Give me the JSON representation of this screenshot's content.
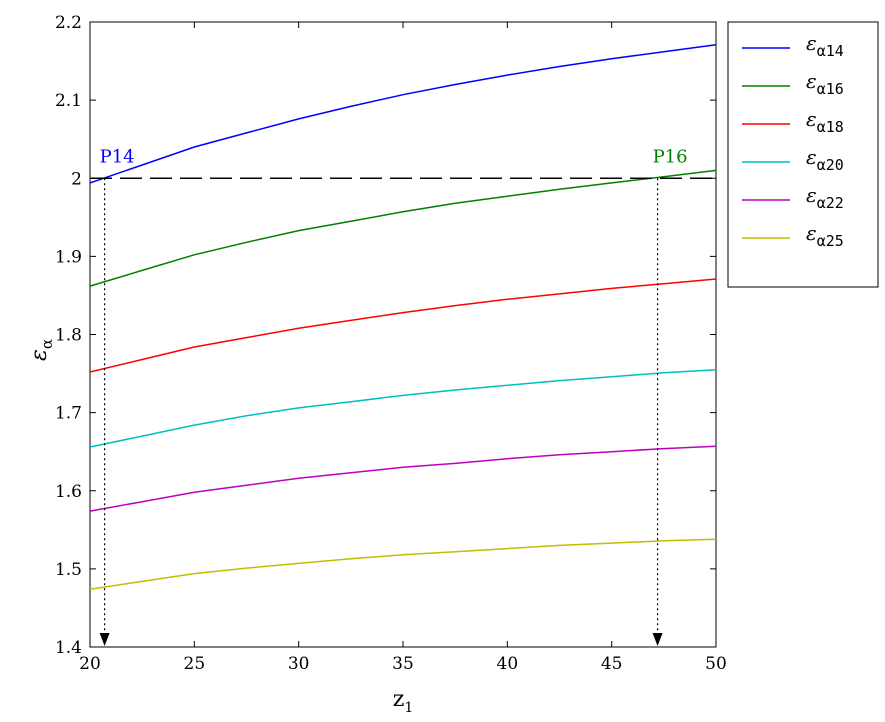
{
  "chart_data": {
    "type": "line",
    "xlabel": "z",
    "xlabel_sub": "1",
    "ylabel": "ε",
    "ylabel_sub": "α",
    "xlim": [
      20,
      50
    ],
    "ylim": [
      1.4,
      2.2
    ],
    "xticks": [
      20,
      25,
      30,
      35,
      40,
      45,
      50
    ],
    "yticks": [
      1.4,
      1.5,
      1.6,
      1.7,
      1.8,
      1.9,
      2,
      2.1,
      2.2
    ],
    "x": [
      20,
      22.5,
      25,
      27.5,
      30,
      32.5,
      35,
      37.5,
      40,
      42.5,
      45,
      47.5,
      50
    ],
    "series": [
      {
        "name": "εα14",
        "symbol": "ε",
        "sub": "α14",
        "color": "#0000ff",
        "values": [
          1.994,
          2.017,
          2.04,
          2.058,
          2.076,
          2.092,
          2.107,
          2.12,
          2.132,
          2.143,
          2.153,
          2.162,
          2.171
        ]
      },
      {
        "name": "εα16",
        "symbol": "ε",
        "sub": "α16",
        "color": "#008000",
        "values": [
          1.862,
          1.882,
          1.902,
          1.918,
          1.933,
          1.945,
          1.957,
          1.968,
          1.977,
          1.986,
          1.994,
          2.002,
          2.01
        ]
      },
      {
        "name": "εα18",
        "symbol": "ε",
        "sub": "α18",
        "color": "#ff0000",
        "values": [
          1.752,
          1.768,
          1.784,
          1.796,
          1.808,
          1.818,
          1.828,
          1.837,
          1.845,
          1.852,
          1.859,
          1.865,
          1.871
        ]
      },
      {
        "name": "εα20",
        "symbol": "ε",
        "sub": "α20",
        "color": "#00bfbf",
        "values": [
          1.656,
          1.67,
          1.684,
          1.696,
          1.706,
          1.714,
          1.722,
          1.729,
          1.735,
          1.741,
          1.746,
          1.751,
          1.755
        ]
      },
      {
        "name": "εα22",
        "symbol": "ε",
        "sub": "α22",
        "color": "#bf00bf",
        "values": [
          1.574,
          1.586,
          1.598,
          1.607,
          1.616,
          1.623,
          1.63,
          1.635,
          1.641,
          1.646,
          1.65,
          1.654,
          1.657
        ]
      },
      {
        "name": "εα25",
        "symbol": "ε",
        "sub": "α25",
        "color": "#bfbf00",
        "values": [
          1.474,
          1.484,
          1.494,
          1.501,
          1.507,
          1.513,
          1.518,
          1.522,
          1.526,
          1.53,
          1.533,
          1.536,
          1.538
        ]
      }
    ],
    "reference_line": {
      "y": 2,
      "style": "dashed",
      "color": "#000000"
    },
    "annotations": [
      {
        "label": "P14",
        "x": 20.7,
        "y": 2.0,
        "color": "#0000ff"
      },
      {
        "label": "P16",
        "x": 47.2,
        "y": 2.0,
        "color": "#008000"
      }
    ],
    "grid": false,
    "legend": "right-outside-top"
  }
}
